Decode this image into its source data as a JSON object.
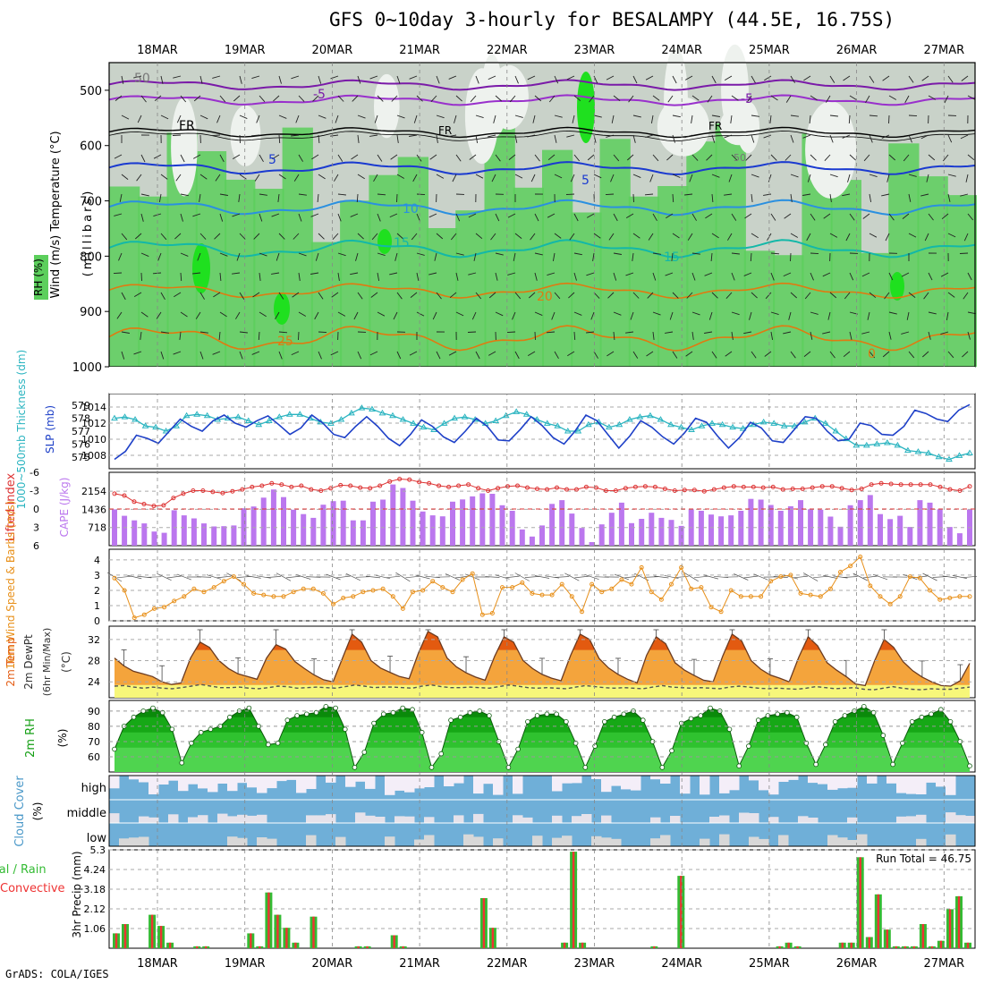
{
  "title": "GFS 0~10day 3-hourly for BESALAMPY (44.5E, 16.75S)",
  "footer": "GrADS: COLA/IGES",
  "colors": {
    "rh_green": "#5ccf5c",
    "rh_gray": "#c9d2c9",
    "slp": "#1e40c8",
    "thickness": "#2ab4c0",
    "cape": "#bb77ee",
    "lifted": "#dd3333",
    "wind10": "#e8901a",
    "temp_hot": "#e35a10",
    "temp_mid": "#f4a43c",
    "dew_fill": "#f7f77a",
    "rh2m": "#16a016",
    "cloud": "#6fafd8",
    "precip_total": "#33bb33",
    "precip_conv": "#ee3333"
  },
  "chart_data": [
    {
      "panel": "upper-air",
      "type": "contour",
      "ylabel": "(millibars)",
      "legend": [
        "Wind (m/s)",
        "Temperature (°C)",
        "RH (%)"
      ],
      "yticks": [
        500,
        600,
        700,
        800,
        900,
        1000
      ],
      "ylim": [
        450,
        1000
      ],
      "dates": [
        "18MAR",
        "19MAR",
        "20MAR",
        "21MAR",
        "22MAR",
        "23MAR",
        "24MAR",
        "25MAR",
        "26MAR",
        "27MAR"
      ],
      "contour_labels": [
        "-5",
        "FR",
        "5",
        "10",
        "15",
        "20",
        "25",
        "0",
        "50"
      ]
    },
    {
      "panel": "slp-thickness",
      "type": "line",
      "ylabel_left": "1000~500mb Thickness (dm)",
      "ylabel_right": "SLP (mb)",
      "thickness_ticks": [
        575,
        576,
        577,
        578,
        579
      ],
      "slp_ticks": [
        1008,
        1010,
        1012,
        1014
      ],
      "slp_values": [
        1007.5,
        1008.5,
        1010.5,
        1010.1,
        1009.5,
        1011.0,
        1012.5,
        1011.6,
        1011.0,
        1012.3,
        1013.0,
        1012.0,
        1011.5,
        1012.3,
        1012.9,
        1011.8,
        1010.6,
        1011.4,
        1013.0,
        1012.0,
        1010.6,
        1010.2,
        1011.6,
        1012.8,
        1011.6,
        1010.1,
        1009.2,
        1010.6,
        1012.4,
        1011.6,
        1010.3,
        1009.6,
        1011.0,
        1012.6,
        1011.6,
        1009.9,
        1009.8,
        1011.2,
        1012.8,
        1011.7,
        1010.2,
        1009.4,
        1011.0,
        1013.0,
        1012.3,
        1010.6,
        1008.9,
        1010.4,
        1012.3,
        1011.5,
        1010.3,
        1009.4,
        1010.8,
        1012.6,
        1012.1,
        1010.4,
        1008.9,
        1010.2,
        1012.1,
        1011.4,
        1009.8,
        1009.6,
        1011.2,
        1012.8,
        1012.6,
        1011.0,
        1009.8,
        1010.0,
        1012.0,
        1011.7,
        1010.6,
        1010.5,
        1011.6,
        1013.6,
        1013.2,
        1012.5,
        1012.2,
        1013.6,
        1014.3
      ],
      "thickness_values": [
        578.0,
        578.1,
        577.9,
        577.4,
        577.3,
        577.0,
        577.4,
        578.2,
        578.3,
        578.2,
        577.9,
        578.0,
        578.1,
        577.8,
        577.5,
        577.8,
        578.1,
        578.3,
        578.3,
        578.0,
        577.7,
        577.6,
        577.9,
        578.4,
        578.8,
        578.7,
        578.4,
        578.2,
        577.9,
        577.6,
        577.3,
        577.1,
        577.6,
        578.0,
        578.1,
        577.9,
        577.6,
        577.8,
        578.2,
        578.5,
        578.3,
        577.9,
        577.6,
        577.4,
        577.0,
        577.0,
        577.5,
        577.7,
        577.3,
        577.5,
        577.9,
        578.1,
        578.2,
        577.9,
        577.5,
        577.3,
        577.1,
        577.4,
        577.6,
        577.5,
        577.3,
        577.2,
        577.5,
        577.7,
        577.6,
        577.4,
        577.4,
        577.7,
        578.0,
        577.6,
        577.0,
        576.4,
        575.9,
        575.9,
        576.0,
        576.1,
        575.9,
        575.5,
        575.4,
        575.3,
        575.0,
        574.8,
        575.1,
        575.3
      ]
    },
    {
      "panel": "cape-lifted",
      "type": "bar+line",
      "ylabel_left": "Lifted Index",
      "ylabel_right": "CAPE (J/kg)",
      "li_ticks": [
        -6,
        -3,
        0,
        3,
        6
      ],
      "cape_ticks": [
        718,
        1436,
        2154
      ],
      "cape_values": [
        1436,
        1180,
        1000,
        880,
        560,
        510,
        1400,
        1200,
        1080,
        880,
        760,
        770,
        800,
        1480,
        1550,
        1900,
        2220,
        1920,
        1420,
        1250,
        1100,
        1620,
        1760,
        1780,
        1000,
        1000,
        1740,
        1820,
        2420,
        2280,
        1780,
        1350,
        1200,
        1160,
        1740,
        1830,
        1950,
        2070,
        2050,
        1600,
        1380,
        640,
        360,
        800,
        1650,
        1800,
        1270,
        700,
        140,
        840,
        1300,
        1700,
        890,
        1060,
        1300,
        1100,
        1020,
        780,
        1440,
        1380,
        1230,
        1160,
        1200,
        1380,
        1850,
        1820,
        1610,
        1380,
        1560,
        1800,
        1440,
        1420,
        1150,
        750,
        1600,
        1800,
        2000,
        1250,
        1050,
        1180,
        740,
        1800,
        1700,
        1440,
        740,
        490,
        1430
      ],
      "li_values": [
        -2.5,
        -2.2,
        -1.2,
        -0.8,
        -0.5,
        -0.6,
        -1.8,
        -2.5,
        -3.0,
        -3.0,
        -2.8,
        -2.6,
        -2.9,
        -3.2,
        -3.6,
        -3.8,
        -4.2,
        -4.0,
        -3.6,
        -3.8,
        -3.2,
        -3.0,
        -3.4,
        -3.9,
        -3.8,
        -3.5,
        -3.4,
        -3.8,
        -4.5,
        -4.9,
        -4.8,
        -4.4,
        -4.2,
        -3.8,
        -3.6,
        -3.8,
        -4.0,
        -3.4,
        -3.0,
        -3.4,
        -3.7,
        -3.8,
        -3.5,
        -3.3,
        -3.2,
        -3.5,
        -3.2,
        -3.2,
        -3.6,
        -3.5,
        -3.0,
        -3.0,
        -3.4,
        -3.6,
        -3.7,
        -3.6,
        -3.3,
        -3.0,
        -3.1,
        -3.1,
        -2.9,
        -3.2,
        -3.5,
        -3.7,
        -3.6,
        -3.6,
        -3.5,
        -3.6,
        -3.2,
        -3.3,
        -3.3,
        -3.5,
        -3.7,
        -3.7,
        -3.4,
        -3.1,
        -3.3,
        -4.0,
        -4.2,
        -4.1,
        -4.0,
        -4.0,
        -4.0,
        -4.0,
        -3.6,
        -3.2,
        -3.0,
        -3.7
      ]
    },
    {
      "panel": "wind10m",
      "type": "line",
      "ylabel": "10m Wind Speed & Barbs (m/s)",
      "yticks": [
        0,
        1,
        2,
        3,
        4
      ],
      "values": [
        2.8,
        2.0,
        0.2,
        0.4,
        0.8,
        0.9,
        1.3,
        1.6,
        2.1,
        1.9,
        2.2,
        2.6,
        2.9,
        2.4,
        1.8,
        1.7,
        1.6,
        1.6,
        1.9,
        2.1,
        2.1,
        1.8,
        1.1,
        1.5,
        1.6,
        1.9,
        2.0,
        2.1,
        1.6,
        0.8,
        1.9,
        2.0,
        2.6,
        2.2,
        1.9,
        2.7,
        3.1,
        0.4,
        0.5,
        2.2,
        2.2,
        2.5,
        1.8,
        1.7,
        1.7,
        2.4,
        1.6,
        0.6,
        2.4,
        1.9,
        2.1,
        2.7,
        2.4,
        3.5,
        1.9,
        1.4,
        2.4,
        3.5,
        2.1,
        2.2,
        0.9,
        0.6,
        2.0,
        1.6,
        1.6,
        1.6,
        2.6,
        2.9,
        3.0,
        1.8,
        1.7,
        1.6,
        2.1,
        3.2,
        3.6,
        4.2,
        2.3,
        1.6,
        1.1,
        1.6,
        2.9,
        2.8,
        2.0,
        1.4,
        1.5,
        1.6,
        1.6
      ]
    },
    {
      "panel": "temp2m",
      "type": "area",
      "ylabel": "2m Temp / 2m DewPt (6hr Min/Max) (°C)",
      "yticks": [
        24,
        28,
        32
      ],
      "temp_values": [
        28.5,
        27.0,
        26.0,
        25.5,
        25.0,
        24.0,
        23.5,
        23.8,
        28.5,
        31.5,
        30.5,
        28.0,
        26.5,
        25.5,
        25.0,
        24.5,
        28.5,
        31.0,
        30.2,
        27.8,
        26.5,
        25.3,
        24.4,
        24.0,
        28.5,
        33.0,
        31.5,
        28.0,
        26.6,
        25.8,
        25.0,
        24.6,
        29.5,
        33.5,
        32.5,
        28.5,
        26.8,
        25.7,
        24.9,
        24.3,
        28.8,
        32.5,
        31.5,
        28.0,
        26.5,
        25.4,
        24.7,
        24.2,
        29.0,
        33.0,
        32.0,
        28.4,
        26.6,
        25.4,
        24.5,
        23.8,
        29.0,
        32.5,
        31.2,
        27.6,
        26.2,
        25.2,
        24.3,
        24.0,
        28.8,
        33.0,
        31.7,
        28.0,
        26.4,
        25.3,
        24.7,
        24.0,
        28.6,
        32.5,
        30.8,
        27.6,
        26.2,
        25.0,
        23.6,
        23.3,
        28.0,
        32.0,
        30.5,
        27.8,
        26.1,
        24.9,
        24.0,
        23.3,
        23.2,
        24.2,
        27.5
      ],
      "dew_values": [
        23.2,
        23.3,
        23.0,
        22.8,
        23.0,
        22.8,
        22.7,
        22.9,
        23.2,
        23.5,
        23.2,
        22.9,
        22.9,
        23.0,
        22.8,
        22.7,
        22.9,
        23.2,
        23.1,
        22.8,
        22.9,
        23.0,
        22.9,
        22.8,
        23.1,
        23.4,
        23.2,
        22.9,
        23.0,
        23.0,
        22.9,
        22.8,
        23.2,
        23.4,
        23.1,
        22.9,
        22.9,
        23.0,
        22.9,
        22.8,
        23.1,
        23.4,
        23.2,
        22.9,
        22.8,
        22.9,
        22.8,
        22.7,
        23.0,
        23.3,
        23.1,
        22.9,
        22.8,
        22.9,
        22.8,
        22.7,
        23.0,
        23.3,
        23.0,
        22.9,
        22.8,
        22.9,
        22.8,
        22.7,
        23.0,
        23.2,
        23.0,
        22.8,
        22.7,
        22.8,
        22.7,
        22.6,
        22.8,
        23.1,
        22.9,
        22.7,
        22.8,
        22.9,
        22.6,
        22.5,
        22.8,
        23.1,
        22.8,
        22.6,
        22.5,
        22.7,
        22.6,
        22.6,
        22.8,
        23.0
      ]
    },
    {
      "panel": "rh2m",
      "type": "area",
      "ylabel": "2m RH (%)",
      "yticks": [
        60,
        70,
        80,
        90
      ],
      "values": [
        65,
        80,
        86,
        90,
        92,
        89,
        78,
        56,
        69,
        76,
        78,
        80,
        86,
        90,
        92,
        80,
        68,
        69,
        84,
        87,
        88,
        89,
        93,
        92,
        78,
        53,
        63,
        82,
        88,
        89,
        92,
        91,
        76,
        53,
        62,
        84,
        86,
        89,
        90,
        87,
        70,
        53,
        65,
        83,
        87,
        88,
        88,
        83,
        69,
        53,
        67,
        83,
        86,
        88,
        90,
        84,
        70,
        53,
        64,
        82,
        85,
        87,
        92,
        90,
        78,
        54,
        67,
        84,
        87,
        88,
        89,
        86,
        69,
        55,
        68,
        83,
        87,
        90,
        93,
        89,
        74,
        55,
        69,
        83,
        86,
        88,
        91,
        83,
        70,
        54
      ]
    },
    {
      "panel": "cloud",
      "type": "heatmap",
      "ylabel": "Cloud Cover (%)",
      "levels": [
        "high",
        "middle",
        "low"
      ]
    },
    {
      "panel": "precip",
      "type": "bar",
      "ylabel": "3hr Precip (mm)",
      "legend": [
        "Total / Rain",
        "Convective"
      ],
      "yticks": [
        1.06,
        2.12,
        3.18,
        4.24,
        5.3
      ],
      "run_total_label": "Run Total = 46.75",
      "values": [
        0.8,
        1.3,
        0,
        0,
        1.8,
        1.2,
        0.3,
        0,
        0,
        0.1,
        0.1,
        0,
        0,
        0,
        0,
        0.8,
        0.1,
        3.0,
        1.8,
        1.1,
        0.3,
        0,
        1.7,
        0,
        0,
        0,
        0,
        0.1,
        0.1,
        0,
        0,
        0.7,
        0.1,
        0,
        0,
        0,
        0,
        0,
        0,
        0,
        0,
        2.7,
        1.1,
        0,
        0,
        0,
        0,
        0,
        0,
        0,
        0.3,
        5.2,
        0.3,
        0,
        0,
        0,
        0,
        0,
        0,
        0,
        0.1,
        0,
        0,
        3.9,
        0,
        0,
        0,
        0,
        0,
        0,
        0,
        0,
        0,
        0,
        0.1,
        0.3,
        0.1,
        0,
        0,
        0,
        0,
        0.3,
        0.3,
        4.9,
        0.6,
        2.9,
        1.0,
        0.1,
        0.1,
        0.1,
        1.3,
        0.1,
        0.4,
        2.1,
        2.8,
        0.3
      ]
    }
  ],
  "dates": [
    "18MAR",
    "19MAR",
    "20MAR",
    "21MAR",
    "22MAR",
    "23MAR",
    "24MAR",
    "25MAR",
    "26MAR",
    "27MAR"
  ],
  "labels": {
    "wind": "Wind (m/s)",
    "temperature": "Temperature (°C)",
    "rh": "RH (%)",
    "millibars": "(millibars)",
    "thickness": "1000~500mb Thickness (dm)",
    "slp": "SLP (mb)",
    "lifted": "Lifted Index",
    "cape": "CAPE (J/kg)",
    "wind10": "10m Wind Speed & Barbs (m/s)",
    "temp2m": "2m Temp",
    "dew2m": "2m DewPt",
    "minmax": "(6hr Min/Max)",
    "degc": "(°C)",
    "rh2m": "2m RH",
    "pct": "(%)",
    "cloud": "Cloud Cover",
    "high": "high",
    "middle": "middle",
    "low": "low",
    "precip": "3hr Precip (mm)",
    "total": "Total / Rain",
    "convective": "Convective"
  }
}
